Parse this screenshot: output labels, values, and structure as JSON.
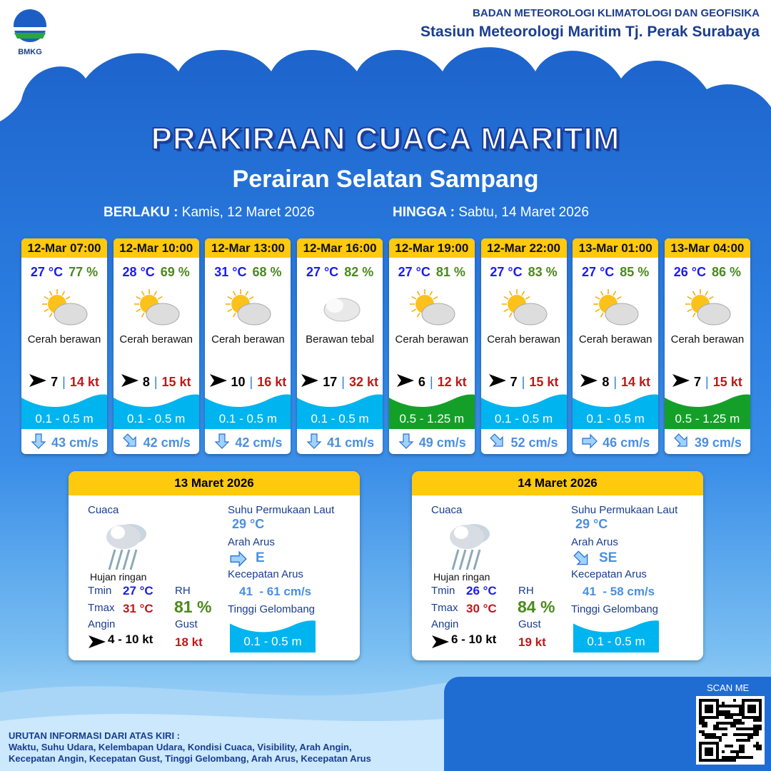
{
  "header": {
    "org": "BADAN METEOROLOGI KLIMATOLOGI DAN GEOFISIKA",
    "station": "Stasiun Meteorologi Maritim Tj. Perak Surabaya",
    "logo_text": "BMKG"
  },
  "title": "PRAKIRAAN CUACA MARITIM",
  "subtitle": "Perairan Selatan Sampang",
  "validity": {
    "from_label": "BERLAKU :",
    "from": "Kamis, 12 Maret 2026",
    "to_label": "HINGGA :",
    "to": "Sabtu, 14 Maret 2026"
  },
  "colors": {
    "header_yellow": "#ffc90d",
    "wave_blue": "#00b4f0",
    "wave_green": "#14a028",
    "temp": "#1b1bf0",
    "rh": "#4a8a1c",
    "gust": "#c01818"
  },
  "forecasts": [
    {
      "time": "12-Mar 07:00",
      "temp": "27 °C",
      "rh": "77 %",
      "icon": "sun-cloud-icon",
      "cond": "Cerah berawan",
      "wind": "7",
      "gust": "14 kt",
      "wave": "0.1 - 0.5 m",
      "wave_color": "blue",
      "cur_dir": "S",
      "current": "43 cm/s"
    },
    {
      "time": "12-Mar 10:00",
      "temp": "28 °C",
      "rh": "69 %",
      "icon": "sun-cloud-icon",
      "cond": "Cerah berawan",
      "wind": "8",
      "gust": "15 kt",
      "wave": "0.1 - 0.5 m",
      "wave_color": "blue",
      "cur_dir": "SE",
      "current": "42 cm/s"
    },
    {
      "time": "12-Mar 13:00",
      "temp": "31 °C",
      "rh": "68 %",
      "icon": "sun-cloud-icon",
      "cond": "Cerah berawan",
      "wind": "10",
      "gust": "16 kt",
      "wave": "0.1 - 0.5 m",
      "wave_color": "blue",
      "cur_dir": "S",
      "current": "42 cm/s"
    },
    {
      "time": "12-Mar 16:00",
      "temp": "27 °C",
      "rh": "82 %",
      "icon": "cloud-icon",
      "cond": "Berawan tebal",
      "wind": "17",
      "gust": "32 kt",
      "wave": "0.1 - 0.5 m",
      "wave_color": "blue",
      "cur_dir": "S",
      "current": "41 cm/s"
    },
    {
      "time": "12-Mar 19:00",
      "temp": "27 °C",
      "rh": "81 %",
      "icon": "sun-cloud-icon",
      "cond": "Cerah berawan",
      "wind": "6",
      "gust": "12 kt",
      "wave": "0.5 - 1.25 m",
      "wave_color": "green",
      "cur_dir": "S",
      "current": "49 cm/s"
    },
    {
      "time": "12-Mar 22:00",
      "temp": "27 °C",
      "rh": "83 %",
      "icon": "sun-cloud-icon",
      "cond": "Cerah berawan",
      "wind": "7",
      "gust": "15 kt",
      "wave": "0.1 - 0.5 m",
      "wave_color": "blue",
      "cur_dir": "SE",
      "current": "52 cm/s"
    },
    {
      "time": "13-Mar 01:00",
      "temp": "27 °C",
      "rh": "85 %",
      "icon": "sun-cloud-icon",
      "cond": "Cerah berawan",
      "wind": "8",
      "gust": "14 kt",
      "wave": "0.1 - 0.5 m",
      "wave_color": "blue",
      "cur_dir": "E",
      "current": "46 cm/s"
    },
    {
      "time": "13-Mar 04:00",
      "temp": "26 °C",
      "rh": "86 %",
      "icon": "sun-cloud-icon",
      "cond": "Cerah berawan",
      "wind": "7",
      "gust": "15 kt",
      "wave": "0.5 - 1.25 m",
      "wave_color": "green",
      "cur_dir": "SE",
      "current": "39 cm/s"
    }
  ],
  "labels": {
    "cuaca": "Cuaca",
    "tmin": "Tmin",
    "tmax": "Tmax",
    "angin": "Angin",
    "rh": "RH",
    "gust": "Gust",
    "sst": "Suhu Permukaan Laut",
    "arah": "Arah Arus",
    "kecepatan": "Kecepatan Arus",
    "tinggi": "Tinggi Gelombang"
  },
  "days": [
    {
      "date": "13 Maret 2026",
      "cond": "Hujan ringan",
      "tmin": "27 °C",
      "tmax": "31 °C",
      "wind": "4  - 10 kt",
      "rh": "81 %",
      "gust": "18 kt",
      "sst": "29 °C",
      "cur_dir": "E",
      "current": "41  - 61 cm/s",
      "wave": "0.1 - 0.5 m"
    },
    {
      "date": "14 Maret 2026",
      "cond": "Hujan ringan",
      "tmin": "26 °C",
      "tmax": "30 °C",
      "wind": "6  - 10 kt",
      "rh": "84 %",
      "gust": "19 kt",
      "sst": "29 °C",
      "cur_dir": "SE",
      "current": "41  - 58 cm/s",
      "wave": "0.1 - 0.5 m"
    }
  ],
  "footer": {
    "info_title": "URUTAN INFORMASI DARI ATAS KIRI :",
    "info_1": "Waktu, Suhu Udara, Kelembapan Udara, Kondisi Cuaca, Visibility, Arah Angin,",
    "info_2": "Kecepatan Angin, Kecepatan Gust, Tinggi Gelombang, Arah Arus, Kecepatan Arus",
    "scan": "SCAN ME"
  }
}
